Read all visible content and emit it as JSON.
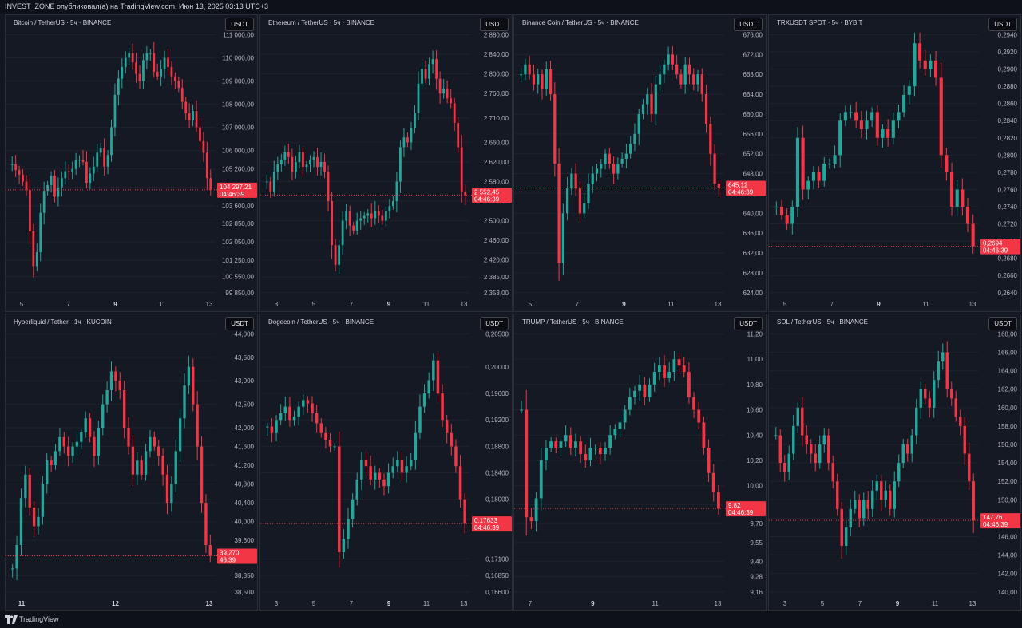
{
  "header": {
    "text": "INVEST_ZONE опубликовал(а) на TradingView.com, Июн 13, 2025 03:13 UTC+3"
  },
  "footer": {
    "brand": "TradingView"
  },
  "colors": {
    "up": "#26a69a",
    "down": "#f23645",
    "bg": "#151924",
    "grid": "#1e222d"
  },
  "chart_data": [
    {
      "type": "candlestick",
      "title": "Bitcoin / TetherUS · 5ч · BINANCE",
      "currency": "USDT",
      "yticks": [
        99850,
        100550,
        101250,
        102050,
        102850,
        103600,
        104400,
        105200,
        106000,
        107000,
        108000,
        109000,
        110000,
        111000
      ],
      "ytick_labels": [
        "99 850,00",
        "100 550,00",
        "101 250,00",
        "102 050,00",
        "102 850,00",
        "103 600,00",
        "104 400,00",
        "105 200,00",
        "106 000,00",
        "107 000,00",
        "108 000,00",
        "109 000,00",
        "110 000,00",
        "111 000,00"
      ],
      "x_labels": [
        "5",
        "7",
        "9",
        "11",
        "13"
      ],
      "bold_x": [
        "9"
      ],
      "last_price": 104297.21,
      "price_label": "104 297,21",
      "countdown": "04:46:39",
      "path": [
        105400,
        105150,
        104950,
        104650,
        104300,
        102500,
        101000,
        101600,
        103300,
        104250,
        104500,
        104900,
        104000,
        104400,
        104800,
        105100,
        105050,
        105200,
        105600,
        105600,
        105500,
        104600,
        105000,
        105300,
        105900,
        106100,
        105300,
        105800,
        107000,
        108400,
        109100,
        109600,
        110000,
        110200,
        109800,
        109300,
        109000,
        109900,
        110200,
        110200,
        109400,
        109200,
        109500,
        110000,
        109600,
        109200,
        109000,
        108700,
        108100,
        107600,
        107300,
        107700,
        107000,
        106400,
        105900,
        104800,
        104300
      ]
    },
    {
      "type": "candlestick",
      "title": "Ethereum / TetherUS · 5ч · BINANCE",
      "currency": "USDT",
      "yticks": [
        2353,
        2385,
        2420,
        2460,
        2500,
        2540,
        2580,
        2620,
        2660,
        2710,
        2760,
        2800,
        2840,
        2880
      ],
      "ytick_labels": [
        "2 353,00",
        "2 385,00",
        "2 420,00",
        "2 460,00",
        "2 500,00",
        "2 540,00",
        "2 580,00",
        "2 620,00",
        "2 660,00",
        "2 710,00",
        "2 760,00",
        "2 800,00",
        "2 840,00",
        "2 880,00"
      ],
      "x_labels": [
        "3",
        "5",
        "7",
        "9",
        "11",
        "13"
      ],
      "bold_x": [
        "9"
      ],
      "last_price": 2552.45,
      "price_label": "2 552,45",
      "countdown": "04:46:39",
      "path": [
        2580,
        2560,
        2600,
        2615,
        2625,
        2640,
        2630,
        2600,
        2620,
        2640,
        2610,
        2615,
        2625,
        2630,
        2610,
        2620,
        2600,
        2540,
        2450,
        2410,
        2450,
        2500,
        2520,
        2490,
        2480,
        2500,
        2505,
        2510,
        2515,
        2505,
        2520,
        2510,
        2500,
        2520,
        2530,
        2540,
        2580,
        2650,
        2670,
        2660,
        2690,
        2720,
        2780,
        2810,
        2790,
        2820,
        2830,
        2790,
        2760,
        2770,
        2750,
        2740,
        2700,
        2650,
        2560,
        2552
      ]
    },
    {
      "type": "candlestick",
      "title": "Binance Coin / TetherUS · 5ч · BINANCE",
      "currency": "USDT",
      "yticks": [
        624,
        628,
        632,
        636,
        640,
        644,
        648,
        652,
        656,
        660,
        664,
        668,
        672,
        676
      ],
      "ytick_labels": [
        "624,00",
        "628,00",
        "632,00",
        "636,00",
        "640,00",
        "644,00",
        "648,00",
        "652,00",
        "656,00",
        "660,00",
        "664,00",
        "668,00",
        "672,00",
        "676,00"
      ],
      "x_labels": [
        "5",
        "7",
        "9",
        "11",
        "13"
      ],
      "bold_x": [
        "9"
      ],
      "last_price": 645.12,
      "price_label": "645,12",
      "countdown": "04:46:39",
      "path": [
        668,
        670,
        668,
        666,
        668,
        665,
        669,
        664,
        650,
        630,
        640,
        645,
        648,
        645,
        640,
        642,
        646,
        648,
        649,
        650,
        652,
        650,
        648,
        650,
        651,
        652,
        654,
        656,
        660,
        662,
        664,
        660,
        666,
        668,
        670,
        672,
        670,
        668,
        666,
        670,
        668,
        666,
        668,
        664,
        658,
        652,
        646,
        645
      ]
    },
    {
      "type": "candlestick",
      "title": "TRXUSDT SPOT · 5ч · BYBIT",
      "currency": "USDT",
      "yticks": [
        0.264,
        0.266,
        0.268,
        0.27,
        0.272,
        0.274,
        0.276,
        0.278,
        0.28,
        0.282,
        0.284,
        0.286,
        0.288,
        0.29,
        0.292,
        0.294
      ],
      "ytick_labels": [
        "0,2640",
        "0,2660",
        "0,2680",
        "0,2700",
        "0,2720",
        "0,2740",
        "0,2760",
        "0,2780",
        "0,2800",
        "0,2820",
        "0,2840",
        "0,2860",
        "0,2880",
        "0,2900",
        "0,2920",
        "0,2940"
      ],
      "x_labels": [
        "5",
        "7",
        "9",
        "11",
        "13"
      ],
      "bold_x": [
        "9"
      ],
      "last_price": 0.2694,
      "price_label": "0,2694",
      "countdown": "04:46:39",
      "path": [
        0.274,
        0.273,
        0.272,
        0.274,
        0.282,
        0.276,
        0.277,
        0.278,
        0.277,
        0.279,
        0.279,
        0.28,
        0.284,
        0.285,
        0.285,
        0.284,
        0.283,
        0.284,
        0.285,
        0.282,
        0.283,
        0.282,
        0.284,
        0.285,
        0.287,
        0.288,
        0.293,
        0.291,
        0.29,
        0.291,
        0.289,
        0.28,
        0.278,
        0.274,
        0.276,
        0.274,
        0.272,
        0.2694
      ]
    },
    {
      "type": "candlestick",
      "title": "Hyperliquid / Tether · 1ч · KUCOIN",
      "currency": "USDT",
      "yticks": [
        38.5,
        38.85,
        39.27,
        39.6,
        40.0,
        40.4,
        40.8,
        41.2,
        41.6,
        42.0,
        42.5,
        43.0,
        43.5,
        44.0
      ],
      "ytick_labels": [
        "38,500",
        "38,850",
        "39,270",
        "39,600",
        "40,000",
        "40,400",
        "40,800",
        "41,200",
        "41,600",
        "42,000",
        "42,500",
        "43,000",
        "43,500",
        "44,000"
      ],
      "x_labels": [
        "11",
        "12",
        "13"
      ],
      "bold_x": [
        "11",
        "12",
        "13"
      ],
      "last_price": 39.27,
      "price_label": "39,270",
      "countdown": "46:39",
      "path": [
        39.0,
        39.5,
        40.5,
        41.0,
        40.3,
        39.9,
        40.1,
        40.8,
        41.3,
        41.2,
        41.5,
        41.8,
        41.6,
        41.4,
        41.6,
        41.7,
        41.9,
        42.2,
        41.8,
        41.4,
        42.0,
        42.5,
        42.8,
        43.2,
        43.0,
        42.8,
        42.0,
        41.6,
        41.0,
        41.3,
        41.0,
        41.5,
        41.8,
        41.6,
        41.4,
        41.0,
        40.4,
        40.8,
        41.5,
        42.2,
        42.9,
        43.3,
        42.5,
        41.6,
        40.4,
        39.5,
        39.27
      ]
    },
    {
      "type": "candlestick",
      "title": "Dogecoin / TetherUS · 5ч · BINANCE",
      "currency": "USDT",
      "yticks": [
        0.166,
        0.1685,
        0.171,
        0.1763,
        0.177,
        0.18,
        0.184,
        0.188,
        0.192,
        0.196,
        0.2,
        0.205
      ],
      "ytick_labels": [
        "0,16600",
        "0,16850",
        "0,17100",
        "0,17633",
        "0,17700",
        "0,18000",
        "0,18400",
        "0,18800",
        "0,19200",
        "0,19600",
        "0,20000",
        "0,20500"
      ],
      "x_labels": [
        "3",
        "5",
        "7",
        "9",
        "11",
        "13"
      ],
      "bold_x": [
        "9"
      ],
      "last_price": 0.17633,
      "price_label": "0,17633",
      "countdown": "04:46:39",
      "path": [
        0.191,
        0.19,
        0.192,
        0.193,
        0.194,
        0.192,
        0.1925,
        0.194,
        0.195,
        0.1945,
        0.193,
        0.1915,
        0.19,
        0.189,
        0.188,
        0.188,
        0.172,
        0.174,
        0.177,
        0.18,
        0.183,
        0.186,
        0.185,
        0.183,
        0.184,
        0.183,
        0.182,
        0.184,
        0.185,
        0.186,
        0.184,
        0.185,
        0.186,
        0.19,
        0.194,
        0.196,
        0.198,
        0.201,
        0.196,
        0.192,
        0.19,
        0.188,
        0.185,
        0.18,
        0.1763
      ]
    },
    {
      "type": "candlestick",
      "title": "TRUMP / TetherUS · 5ч · BINANCE",
      "currency": "USDT",
      "yticks": [
        9.16,
        9.28,
        9.4,
        9.55,
        9.7,
        9.85,
        10.0,
        10.2,
        10.4,
        10.6,
        10.8,
        11.0,
        11.2
      ],
      "ytick_labels": [
        "9,16",
        "9,28",
        "9,40",
        "9,55",
        "9,70",
        "9,85",
        "10,00",
        "10,20",
        "10,40",
        "10,60",
        "10,80",
        "11,00",
        "11,20"
      ],
      "x_labels": [
        "7",
        "9",
        "11",
        "13"
      ],
      "bold_x": [
        "9"
      ],
      "last_price": 9.82,
      "price_label": "9,82",
      "countdown": "04:46:39",
      "path": [
        10.6,
        9.75,
        9.72,
        9.9,
        10.2,
        10.3,
        10.35,
        10.3,
        10.35,
        10.4,
        10.3,
        10.35,
        10.25,
        10.2,
        10.3,
        10.3,
        10.25,
        10.3,
        10.4,
        10.45,
        10.5,
        10.6,
        10.7,
        10.75,
        10.8,
        10.7,
        10.8,
        10.9,
        10.95,
        10.85,
        10.9,
        11.0,
        10.95,
        10.9,
        10.7,
        10.6,
        10.5,
        10.3,
        10.1,
        9.95,
        9.82
      ]
    },
    {
      "type": "candlestick",
      "title": "SOL / TetherUS · 5ч · BINANCE",
      "currency": "USDT",
      "yticks": [
        140,
        142,
        144,
        146,
        148,
        150,
        152,
        154,
        156,
        158,
        160,
        162,
        164,
        166,
        168
      ],
      "ytick_labels": [
        "140,00",
        "142,00",
        "144,00",
        "146,00",
        "148,00",
        "150,00",
        "152,00",
        "154,00",
        "156,00",
        "158,00",
        "160,00",
        "162,00",
        "164,00",
        "166,00",
        "168,00"
      ],
      "x_labels": [
        "3",
        "5",
        "7",
        "9",
        "11",
        "13"
      ],
      "bold_x": [
        "9"
      ],
      "last_price": 147.76,
      "price_label": "147,76",
      "countdown": "04:46:39",
      "path": [
        157,
        154,
        153,
        155,
        158,
        160,
        157,
        156,
        155,
        154,
        156,
        157,
        154,
        152,
        149,
        145,
        147,
        149,
        150,
        148,
        150,
        149,
        151,
        152,
        150,
        151,
        149,
        152,
        154,
        156,
        155,
        157,
        160,
        162,
        161,
        160,
        163,
        165,
        166,
        162,
        161,
        159,
        158,
        155,
        152,
        147.76
      ]
    }
  ]
}
